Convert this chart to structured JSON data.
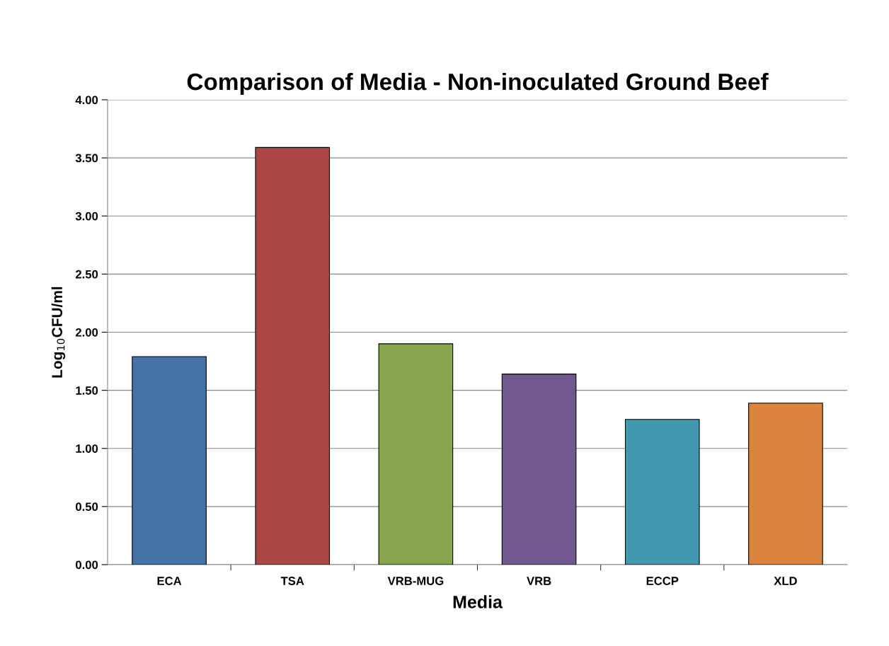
{
  "chart_data": {
    "type": "bar",
    "title": "Comparison of Media - Non-inoculated Ground Beef",
    "xlabel": "Media",
    "ylabel": "Log$_{10}$CFU/ml",
    "categories": [
      "ECA",
      "TSA",
      "VRB-MUG",
      "VRB",
      "ECCP",
      "XLD"
    ],
    "values": [
      1.79,
      3.59,
      1.9,
      1.64,
      1.25,
      1.39
    ],
    "colors": [
      "#4573a7",
      "#aa4644",
      "#89a54e",
      "#71588f",
      "#4198af",
      "#db843d"
    ],
    "ylim": [
      0,
      4
    ],
    "yticks": [
      {
        "value": 0,
        "label": "0.00"
      },
      {
        "value": 0.5,
        "label": "0.50"
      },
      {
        "value": 1,
        "label": "1.00"
      },
      {
        "value": 1.5,
        "label": "1.50"
      },
      {
        "value": 2,
        "label": "2.00"
      },
      {
        "value": 2.5,
        "label": "2.50"
      },
      {
        "value": 3,
        "label": "3.00"
      },
      {
        "value": 3.5,
        "label": "3.50"
      },
      {
        "value": 4,
        "label": "4.00"
      }
    ],
    "grid": "y"
  }
}
